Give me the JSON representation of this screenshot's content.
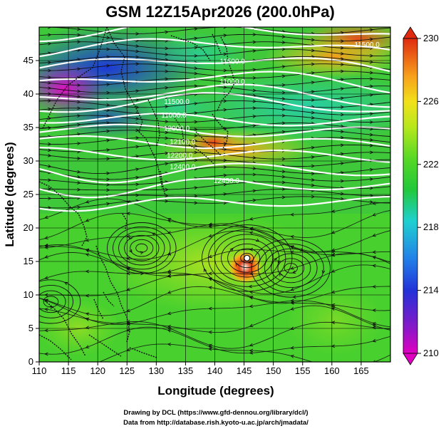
{
  "title": "GSM 12Z15Apr2026 (200.0hPa)",
  "xlabel": "Longitude (degrees)",
  "ylabel": "Latitude  (degrees)",
  "credits": [
    "Drawing by DCL (https://www.gfd-dennou.org/library/dcl/)",
    "Data from http://database.rish.kyoto-u.ac.jp/arch/jmadata/"
  ],
  "chart_data": {
    "type": "heatmap",
    "map_extent": {
      "lon": [
        110,
        170
      ],
      "lat": [
        0,
        50
      ]
    },
    "x_ticks": [
      110,
      115,
      120,
      125,
      130,
      135,
      140,
      145,
      150,
      155,
      160,
      165
    ],
    "y_ticks": [
      0,
      5,
      10,
      15,
      20,
      25,
      30,
      35,
      40,
      45
    ],
    "grid": true,
    "colorbar": {
      "range": [
        210,
        230
      ],
      "ticks": [
        210,
        214,
        218,
        222,
        226,
        230
      ],
      "colors": [
        "#e000c0",
        "#4a1fd0",
        "#2266e8",
        "#1fc8d8",
        "#22c83a",
        "#58d825",
        "#a8e81c",
        "#f2e81a",
        "#f7a81c",
        "#ef6d1c",
        "#e02a10"
      ],
      "position": "right"
    },
    "contour_labels": [
      {
        "text": "11500.0",
        "lon": 166.0,
        "lat": 47.0
      },
      {
        "text": "11500.0",
        "lon": 143.0,
        "lat": 44.5
      },
      {
        "text": "11000.0",
        "lon": 143.0,
        "lat": 41.5
      },
      {
        "text": "11500.0",
        "lon": 133.5,
        "lat": 38.5
      },
      {
        "text": "11000.0",
        "lon": 133.0,
        "lat": 36.5
      },
      {
        "text": "12000.0",
        "lon": 133.5,
        "lat": 34.5
      },
      {
        "text": "12100.0",
        "lon": 134.5,
        "lat": 32.5
      },
      {
        "text": "12200.0",
        "lon": 134.0,
        "lat": 30.5
      },
      {
        "text": "12400.0",
        "lon": 134.5,
        "lat": 28.8
      },
      {
        "text": "12450.0",
        "lon": 142.0,
        "lat": 26.7
      }
    ],
    "features": {
      "cyclone_center": {
        "lon": 145.5,
        "lat": 15.5
      }
    }
  }
}
